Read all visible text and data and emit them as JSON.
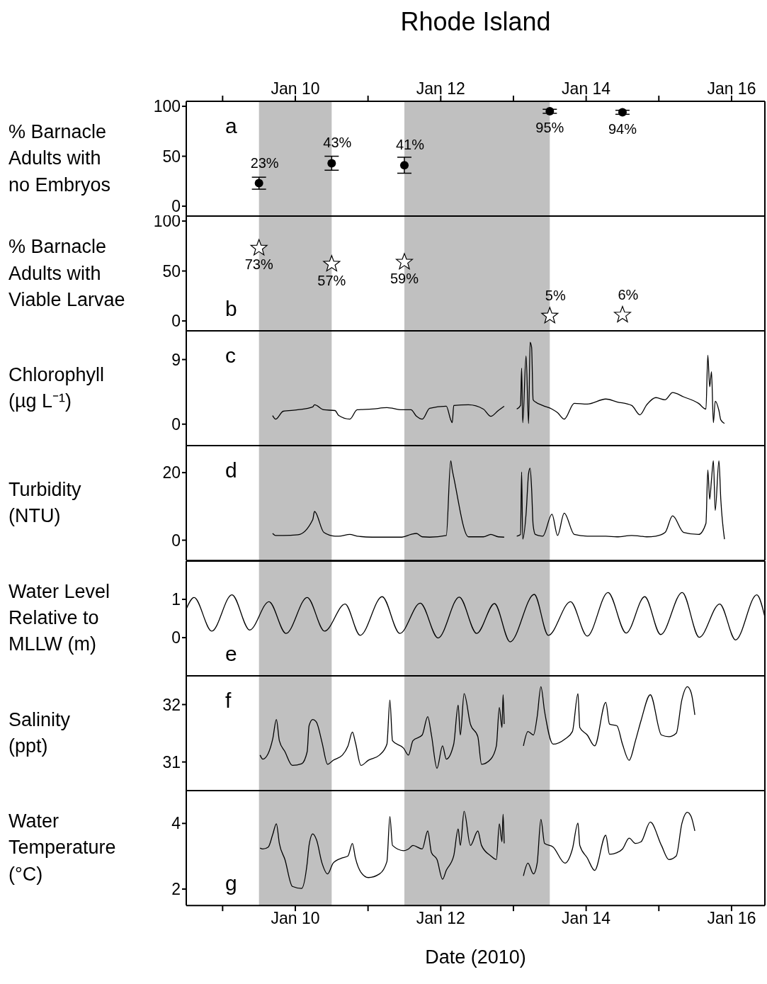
{
  "chart_data": [
    {
      "type": "scatter",
      "title": "Rhode Island",
      "ylabel": "% Barnacle\nAdults with\nno Embryos",
      "annotations": [
        "a"
      ],
      "marker": "circle",
      "tick_labels": "y",
      "x": [
        "2010-01-09T12:00",
        "2010-01-10T12:00",
        "2010-01-11T12:00",
        "2010-01-13T12:00",
        "2010-01-14T12:00"
      ],
      "series": [
        {
          "color": "#000000",
          "values": [
            23,
            43,
            41,
            95,
            94
          ],
          "errors": [
            6,
            7,
            8,
            2,
            2
          ],
          "value_labels": [
            "23%",
            "43%",
            "41%",
            "95%",
            "94%"
          ]
        }
      ],
      "xlim": [
        "2010-01-08T12:00",
        "2010-01-16T11:00"
      ],
      "xticks": [
        {
          "value": "2010-01-09",
          "label": null
        },
        {
          "value": "2010-01-10",
          "label": null
        },
        {
          "value": "2010-01-11",
          "label": null
        },
        {
          "value": "2010-01-12",
          "label": null
        },
        {
          "value": "2010-01-13",
          "label": null
        },
        {
          "value": "2010-01-14",
          "label": null
        },
        {
          "value": "2010-01-15",
          "label": null
        },
        {
          "value": "2010-01-16",
          "label": null
        }
      ],
      "x2lim": [
        "2010-01-08T12:00",
        "2010-01-16T11:00"
      ],
      "x2ticks": [
        {
          "value": "2010-01-09",
          "label": null
        },
        {
          "value": "2010-01-10",
          "label": "Jan 10"
        },
        {
          "value": "2010-01-11",
          "label": null
        },
        {
          "value": "2010-01-12",
          "label": "Jan 12"
        },
        {
          "value": "2010-01-13",
          "label": null
        },
        {
          "value": "2010-01-14",
          "label": "Jan 14"
        },
        {
          "value": "2010-01-15",
          "label": null
        },
        {
          "value": "2010-01-16",
          "label": "Jan 16"
        }
      ],
      "ylim": [
        -10,
        105
      ],
      "yticks": [
        0,
        50,
        100
      ],
      "bands": [
        {
          "axis": "x",
          "from": "2010-01-09T12:00",
          "to": "2010-01-10T12:00",
          "color": "#c0c0c0"
        },
        {
          "axis": "x",
          "from": "2010-01-11T12:00",
          "to": "2010-01-13T12:00",
          "color": "#c0c0c0"
        }
      ]
    },
    {
      "type": "scatter",
      "ylabel": "% Barnacle\nAdults with\nViable Larvae",
      "annotations": [
        "b"
      ],
      "marker": "star",
      "tick_labels": "y",
      "x": [
        "2010-01-09T12:00",
        "2010-01-10T12:00",
        "2010-01-11T12:00",
        "2010-01-13T12:00",
        "2010-01-14T12:00"
      ],
      "series": [
        {
          "color": "#000000",
          "values": [
            73,
            57,
            59,
            5,
            6
          ],
          "value_labels": [
            "73%",
            "57%",
            "59%",
            "5%",
            "6%"
          ]
        }
      ],
      "xlim": [
        "2010-01-08T12:00",
        "2010-01-16T11:00"
      ],
      "xticks": [
        {
          "value": "2010-01-09",
          "label": null
        },
        {
          "value": "2010-01-10",
          "label": null
        },
        {
          "value": "2010-01-11",
          "label": null
        },
        {
          "value": "2010-01-12",
          "label": null
        },
        {
          "value": "2010-01-13",
          "label": null
        },
        {
          "value": "2010-01-14",
          "label": null
        },
        {
          "value": "2010-01-15",
          "label": null
        },
        {
          "value": "2010-01-16",
          "label": null
        }
      ],
      "ylim": [
        -10,
        105
      ],
      "yticks": [
        0,
        50,
        100
      ],
      "bands": [
        {
          "axis": "x",
          "from": "2010-01-09T12:00",
          "to": "2010-01-10T12:00",
          "color": "#c0c0c0"
        },
        {
          "axis": "x",
          "from": "2010-01-11T12:00",
          "to": "2010-01-13T12:00",
          "color": "#c0c0c0"
        }
      ]
    },
    {
      "type": "line",
      "ylabel": "Chlorophyll\n(µg L⁻¹)",
      "annotations": [
        "c"
      ],
      "tick_labels": "y",
      "x": [
        "2010-01-09T16:30",
        "2010-01-09T17:30",
        "2010-01-09T20:00",
        "2010-01-10T00:50",
        "2010-01-10T05:45",
        "2010-01-10T06:20",
        "2010-01-10T09:25",
        "2010-01-10T13:05",
        "2010-01-10T14:20",
        "2010-01-10T18:00",
        "2010-01-10T20:25",
        "2010-01-11T01:20",
        "2010-01-11T06:15",
        "2010-01-11T11:10",
        "2010-01-11T14:10",
        "2010-01-11T16:00",
        "2010-01-11T17:55",
        "2010-01-11T20:20",
        "2010-01-12T01:50",
        "2010-01-12T03:18",
        "2010-01-12T03:48",
        "2010-01-12T04:18",
        "2010-01-12T09:10",
        "2010-01-12T14:05",
        "2010-01-12T16:32",
        "2010-01-12T19:00",
        "2010-01-12T20:57",
        "2010-01-12T23:00",
        "2010-01-13T01:06",
        "2010-01-13T02:20",
        "2010-01-13T02:42",
        "2010-01-13T03:04",
        "2010-01-13T04:10",
        "2010-01-13T05:00",
        "2010-01-13T05:30",
        "2010-01-13T06:00",
        "2010-01-13T06:30",
        "2010-01-13T07:14",
        "2010-01-13T09:40",
        "2010-01-13T12:44",
        "2010-01-13T14:34",
        "2010-01-13T16:46",
        "2010-01-13T20:05",
        "2010-01-14T00:22",
        "2010-01-14T06:30",
        "2010-01-14T10:10",
        "2010-01-14T15:04",
        "2010-01-14T17:45",
        "2010-01-14T20:00",
        "2010-01-14T23:00",
        "2010-01-15T02:05",
        "2010-01-15T04:32",
        "2010-01-15T08:12",
        "2010-01-15T13:06",
        "2010-01-15T15:33",
        "2010-01-15T16:10",
        "2010-01-15T16:47",
        "2010-01-15T17:23",
        "2010-01-15T18:00",
        "2010-01-15T18:37",
        "2010-01-15T19:50",
        "2010-01-15T20:27",
        "2010-01-15T21:40"
      ],
      "series": [
        {
          "color": "#000000",
          "values": [
            1.2,
            0.7,
            1.8,
            2.0,
            2.4,
            2.7,
            2.0,
            1.9,
            1.2,
            0.7,
            2.0,
            2.1,
            2.3,
            2.0,
            2.0,
            1.1,
            0.7,
            2.2,
            2.5,
            0.6,
            0.2,
            2.6,
            2.7,
            2.1,
            1.1,
            1.9,
            2.5,
            null,
            2.1,
            2.6,
            7.8,
            0.2,
            9.5,
            0.1,
            11.4,
            10.7,
            3.4,
            3.1,
            2.6,
            2.1,
            1.6,
            0.7,
            2.9,
            2.8,
            3.5,
            3.1,
            2.6,
            1.3,
            2.7,
            3.7,
            3.4,
            4.4,
            3.8,
            2.9,
            2.1,
            9.6,
            5.2,
            7.3,
            0.2,
            3.2,
            1.9,
            0.6,
            0.1
          ]
        }
      ],
      "xlim": [
        "2010-01-08T12:00",
        "2010-01-16T11:00"
      ],
      "xticks": [
        {
          "value": "2010-01-09",
          "label": null
        },
        {
          "value": "2010-01-10",
          "label": null
        },
        {
          "value": "2010-01-11",
          "label": null
        },
        {
          "value": "2010-01-12",
          "label": null
        },
        {
          "value": "2010-01-13",
          "label": null
        },
        {
          "value": "2010-01-14",
          "label": null
        },
        {
          "value": "2010-01-15",
          "label": null
        },
        {
          "value": "2010-01-16",
          "label": null
        }
      ],
      "ylim": [
        -3,
        13
      ],
      "yticks": [
        0,
        9
      ],
      "bands": [
        {
          "axis": "x",
          "from": "2010-01-09T12:00",
          "to": "2010-01-10T12:00",
          "color": "#c0c0c0"
        },
        {
          "axis": "x",
          "from": "2010-01-11T12:00",
          "to": "2010-01-13T12:00",
          "color": "#c0c0c0"
        }
      ]
    },
    {
      "type": "line",
      "ylabel": "Turbidity\n(NTU)",
      "annotations": [
        "d"
      ],
      "tick_labels": "y",
      "x": [
        "2010-01-09T16:30",
        "2010-01-09T17:30",
        "2010-01-09T20:00",
        "2010-01-10T00:50",
        "2010-01-10T05:45",
        "2010-01-10T06:20",
        "2010-01-10T09:25",
        "2010-01-10T13:05",
        "2010-01-10T14:20",
        "2010-01-10T18:00",
        "2010-01-10T20:25",
        "2010-01-11T01:20",
        "2010-01-11T06:15",
        "2010-01-11T11:10",
        "2010-01-11T14:10",
        "2010-01-11T16:00",
        "2010-01-11T17:55",
        "2010-01-11T20:20",
        "2010-01-12T01:50",
        "2010-01-12T03:18",
        "2010-01-12T03:48",
        "2010-01-12T04:18",
        "2010-01-12T09:10",
        "2010-01-12T14:05",
        "2010-01-12T16:32",
        "2010-01-12T19:00",
        "2010-01-12T20:57",
        "2010-01-12T23:00",
        "2010-01-13T01:06",
        "2010-01-13T02:20",
        "2010-01-13T02:42",
        "2010-01-13T03:04",
        "2010-01-13T04:10",
        "2010-01-13T05:00",
        "2010-01-13T05:30",
        "2010-01-13T06:00",
        "2010-01-13T06:30",
        "2010-01-13T07:14",
        "2010-01-13T09:40",
        "2010-01-13T12:44",
        "2010-01-13T14:34",
        "2010-01-13T16:46",
        "2010-01-13T20:05",
        "2010-01-14T00:22",
        "2010-01-14T06:30",
        "2010-01-14T10:10",
        "2010-01-14T15:04",
        "2010-01-14T17:45",
        "2010-01-14T20:00",
        "2010-01-14T23:00",
        "2010-01-15T02:05",
        "2010-01-15T04:32",
        "2010-01-15T08:12",
        "2010-01-15T13:06",
        "2010-01-15T15:33",
        "2010-01-15T16:10",
        "2010-01-15T16:47",
        "2010-01-15T17:23",
        "2010-01-15T18:00",
        "2010-01-15T18:37",
        "2010-01-15T19:50",
        "2010-01-15T20:27",
        "2010-01-15T21:40"
      ],
      "series": [
        {
          "color": "#000000",
          "values": [
            2.0,
            1.4,
            1.4,
            1.6,
            6.1,
            8.5,
            2.3,
            1.2,
            1.2,
            1.7,
            1.2,
            0.9,
            0.9,
            0.9,
            1.7,
            2.0,
            1.0,
            0.9,
            1.4,
            23.5,
            20.8,
            18.6,
            1.0,
            1.0,
            1.7,
            1.0,
            0.9,
            null,
            1.2,
            1.7,
            20.2,
            0.3,
            7.7,
            19.7,
            21.3,
            15.3,
            4.5,
            1.7,
            1.2,
            7.7,
            1.4,
            8.0,
            1.7,
            1.2,
            1.2,
            1.0,
            1.4,
            1.2,
            1.0,
            1.2,
            2.3,
            7.2,
            2.3,
            1.7,
            5.0,
            20.8,
            12.1,
            18.0,
            23.5,
            8.8,
            23.5,
            12.1,
            0.3
          ]
        }
      ],
      "xlim": [
        "2010-01-08T12:00",
        "2010-01-16T11:00"
      ],
      "xticks": [
        {
          "value": "2010-01-09",
          "label": null
        },
        {
          "value": "2010-01-10",
          "label": null
        },
        {
          "value": "2010-01-11",
          "label": null
        },
        {
          "value": "2010-01-12",
          "label": null
        },
        {
          "value": "2010-01-13",
          "label": null
        },
        {
          "value": "2010-01-14",
          "label": null
        },
        {
          "value": "2010-01-15",
          "label": null
        },
        {
          "value": "2010-01-16",
          "label": null
        }
      ],
      "ylim": [
        -6,
        28
      ],
      "yticks": [
        0,
        20
      ],
      "bands": [
        {
          "axis": "x",
          "from": "2010-01-09T12:00",
          "to": "2010-01-10T12:00",
          "color": "#c0c0c0"
        },
        {
          "axis": "x",
          "from": "2010-01-11T12:00",
          "to": "2010-01-13T12:00",
          "color": "#c0c0c0"
        }
      ]
    },
    {
      "type": "line",
      "ylabel": "Water Level\nRelative to\nMLLW (m)",
      "annotations": [
        "e"
      ],
      "tick_labels": "y",
      "x": [
        "2010-01-08T12:00",
        "2010-01-08T14:35",
        "2010-01-08T20:25",
        "2010-01-09T03:05",
        "2010-01-09T08:56",
        "2010-01-09T15:18",
        "2010-01-09T20:56",
        "2010-01-10T03:55",
        "2010-01-10T09:40",
        "2010-01-10T16:25",
        "2010-01-10T21:25",
        "2010-01-11T04:40",
        "2010-01-11T10:30",
        "2010-01-11T17:15",
        "2010-01-11T23:08",
        "2010-01-12T06:07",
        "2010-01-12T11:53",
        "2010-01-12T17:45",
        "2010-01-12T22:54",
        "2010-01-13T06:52",
        "2010-01-13T11:31",
        "2010-01-13T18:51",
        "2010-01-14T00:22",
        "2010-01-14T07:13",
        "2010-01-14T13:13",
        "2010-01-14T19:21",
        "2010-01-15T00:36",
        "2010-01-15T07:43",
        "2010-01-15T13:21",
        "2010-01-15T20:05",
        "2010-01-16T01:21",
        "2010-01-16T08:20",
        "2010-01-16T11:00"
      ],
      "series": [
        {
          "color": "#000000",
          "values": [
            0.75,
            1.05,
            0.17,
            1.12,
            0.2,
            0.94,
            0.11,
            1.05,
            0.17,
            0.88,
            0.06,
            1.07,
            0.11,
            0.9,
            -0.01,
            1.06,
            0.11,
            0.89,
            -0.11,
            1.13,
            0.06,
            0.94,
            0.04,
            1.18,
            0.12,
            1.07,
            0.08,
            1.18,
            0.01,
            0.88,
            -0.06,
            1.12,
            0.54
          ]
        }
      ],
      "xlim": [
        "2010-01-08T12:00",
        "2010-01-16T11:00"
      ],
      "xticks": [
        {
          "value": "2010-01-09",
          "label": null
        },
        {
          "value": "2010-01-10",
          "label": null
        },
        {
          "value": "2010-01-11",
          "label": null
        },
        {
          "value": "2010-01-12",
          "label": null
        },
        {
          "value": "2010-01-13",
          "label": null
        },
        {
          "value": "2010-01-14",
          "label": null
        },
        {
          "value": "2010-01-15",
          "label": null
        },
        {
          "value": "2010-01-16",
          "label": null
        }
      ],
      "ylim": [
        -1,
        2
      ],
      "yticks": [
        0,
        1
      ],
      "bands": [
        {
          "axis": "x",
          "from": "2010-01-09T12:00",
          "to": "2010-01-10T12:00",
          "color": "#c0c0c0"
        },
        {
          "axis": "x",
          "from": "2010-01-11T12:00",
          "to": "2010-01-13T12:00",
          "color": "#c0c0c0"
        }
      ]
    },
    {
      "type": "line",
      "ylabel": "Salinity\n(ppt)",
      "annotations": [
        "f"
      ],
      "tick_labels": "y",
      "x": [
        "2010-01-09T12:22",
        "2010-01-09T13:15",
        "2010-01-09T15:04",
        "2010-01-09T16:32",
        "2010-01-09T17:45",
        "2010-01-09T18:44",
        "2010-01-09T20:34",
        "2010-01-09T23:01",
        "2010-01-10T02:05",
        "2010-01-10T03:55",
        "2010-01-10T04:32",
        "2010-01-10T05:45",
        "2010-01-10T07:00",
        "2010-01-10T08:49",
        "2010-01-10T10:39",
        "2010-01-10T12:29",
        "2010-01-10T15:33",
        "2010-01-10T17:23",
        "2010-01-10T18:51",
        "2010-01-10T19:50",
        "2010-01-10T21:40",
        "2010-01-11T00:07",
        "2010-01-11T03:47",
        "2010-01-11T06:14",
        "2010-01-11T07:13",
        "2010-01-11T08:05",
        "2010-01-11T11:45",
        "2010-01-11T13:21",
        "2010-01-11T14:49",
        "2010-01-11T17:53",
        "2010-01-11T19:43",
        "2010-01-11T20:56",
        "2010-01-11T22:46",
        "2010-01-12T00:36",
        "2010-01-12T01:50",
        "2010-01-12T04:17",
        "2010-01-12T05:45",
        "2010-01-12T06:29",
        "2010-01-12T07:43",
        "2010-01-12T09:48",
        "2010-01-12T12:15",
        "2010-01-12T13:28",
        "2010-01-12T16:32",
        "2010-01-12T18:22",
        "2010-01-12T19:21",
        "2010-01-12T20:13",
        "2010-01-12T20:35",
        "2010-01-12T20:57",
        "2010-01-12T23:00",
        "2010-01-13T03:18",
        "2010-01-13T04:47",
        "2010-01-13T06:37",
        "2010-01-13T07:50",
        "2010-01-13T09:04",
        "2010-01-13T10:17",
        "2010-01-13T13:06",
        "2010-01-13T17:01",
        "2010-01-13T19:28",
        "2010-01-13T21:18",
        "2010-01-13T21:55",
        "2010-01-14T00:22",
        "2010-01-14T02:49",
        "2010-01-14T06:29",
        "2010-01-14T07:43",
        "2010-01-14T10:10",
        "2010-01-14T12:00",
        "2010-01-14T14:12",
        "2010-01-14T16:17",
        "2010-01-14T18:07",
        "2010-01-14T21:11",
        "2010-01-15T00:51",
        "2010-01-15T03:18",
        "2010-01-15T05:45",
        "2010-01-15T07:35",
        "2010-01-15T09:25",
        "2010-01-15T10:39",
        "2010-01-15T11:53"
      ],
      "series": [
        {
          "color": "#000000",
          "values": [
            31.12,
            31.05,
            31.15,
            31.4,
            31.74,
            31.37,
            31.18,
            30.94,
            30.97,
            31.18,
            31.63,
            31.74,
            31.69,
            31.34,
            30.96,
            31.03,
            31.12,
            31.28,
            31.52,
            31.34,
            30.94,
            31.03,
            31.12,
            31.31,
            32.08,
            31.37,
            31.24,
            31.12,
            31.37,
            31.47,
            31.79,
            31.47,
            30.89,
            31.28,
            31.05,
            31.31,
            31.99,
            31.47,
            32.19,
            31.66,
            31.44,
            30.96,
            31.05,
            31.28,
            31.95,
            31.6,
            32.17,
            31.66,
            null,
            31.28,
            31.53,
            31.47,
            31.79,
            32.31,
            31.88,
            31.31,
            31.4,
            31.53,
            32.19,
            31.6,
            31.47,
            31.28,
            32.04,
            31.66,
            31.63,
            31.31,
            31.03,
            31.37,
            31.72,
            32.17,
            31.47,
            31.44,
            31.5,
            32.08,
            32.31,
            32.21,
            31.82
          ]
        }
      ],
      "xlim": [
        "2010-01-08T12:00",
        "2010-01-16T11:00"
      ],
      "xticks": [
        {
          "value": "2010-01-09",
          "label": null
        },
        {
          "value": "2010-01-10",
          "label": null
        },
        {
          "value": "2010-01-11",
          "label": null
        },
        {
          "value": "2010-01-12",
          "label": null
        },
        {
          "value": "2010-01-13",
          "label": null
        },
        {
          "value": "2010-01-14",
          "label": null
        },
        {
          "value": "2010-01-15",
          "label": null
        },
        {
          "value": "2010-01-16",
          "label": null
        }
      ],
      "ylim": [
        30.5,
        32.5
      ],
      "yticks": [
        31,
        32
      ],
      "bands": [
        {
          "axis": "x",
          "from": "2010-01-09T12:00",
          "to": "2010-01-10T12:00",
          "color": "#c0c0c0"
        },
        {
          "axis": "x",
          "from": "2010-01-11T12:00",
          "to": "2010-01-13T12:00",
          "color": "#c0c0c0"
        }
      ]
    },
    {
      "type": "line",
      "ylabel": "Water\nTemperature\n(°C)",
      "xlabel": "Date (2010)",
      "annotations": [
        "g"
      ],
      "x": [
        "2010-01-09T12:22",
        "2010-01-09T13:15",
        "2010-01-09T15:04",
        "2010-01-09T16:32",
        "2010-01-09T17:45",
        "2010-01-09T18:44",
        "2010-01-09T20:34",
        "2010-01-09T23:01",
        "2010-01-10T02:05",
        "2010-01-10T03:55",
        "2010-01-10T04:32",
        "2010-01-10T05:45",
        "2010-01-10T07:00",
        "2010-01-10T08:49",
        "2010-01-10T10:39",
        "2010-01-10T12:29",
        "2010-01-10T15:33",
        "2010-01-10T17:23",
        "2010-01-10T18:51",
        "2010-01-10T19:50",
        "2010-01-10T21:40",
        "2010-01-11T00:07",
        "2010-01-11T03:47",
        "2010-01-11T06:14",
        "2010-01-11T07:13",
        "2010-01-11T08:05",
        "2010-01-11T11:45",
        "2010-01-11T13:21",
        "2010-01-11T14:49",
        "2010-01-11T17:53",
        "2010-01-11T19:43",
        "2010-01-11T20:56",
        "2010-01-11T22:46",
        "2010-01-12T00:36",
        "2010-01-12T01:50",
        "2010-01-12T04:17",
        "2010-01-12T05:45",
        "2010-01-12T06:29",
        "2010-01-12T07:43",
        "2010-01-12T09:48",
        "2010-01-12T12:15",
        "2010-01-12T13:28",
        "2010-01-12T16:32",
        "2010-01-12T18:22",
        "2010-01-12T19:21",
        "2010-01-12T20:13",
        "2010-01-12T20:35",
        "2010-01-12T20:57",
        "2010-01-12T23:00",
        "2010-01-13T03:18",
        "2010-01-13T04:47",
        "2010-01-13T06:37",
        "2010-01-13T07:50",
        "2010-01-13T09:04",
        "2010-01-13T10:17",
        "2010-01-13T13:06",
        "2010-01-13T17:01",
        "2010-01-13T19:28",
        "2010-01-13T21:18",
        "2010-01-13T21:55",
        "2010-01-14T00:22",
        "2010-01-14T02:49",
        "2010-01-14T06:29",
        "2010-01-14T07:43",
        "2010-01-14T10:10",
        "2010-01-14T12:00",
        "2010-01-14T14:12",
        "2010-01-14T16:17",
        "2010-01-14T18:07",
        "2010-01-14T21:11",
        "2010-01-15T00:51",
        "2010-01-15T03:18",
        "2010-01-15T05:45",
        "2010-01-15T07:35",
        "2010-01-15T09:25",
        "2010-01-15T10:39",
        "2010-01-15T11:53"
      ],
      "series": [
        {
          "color": "#000000",
          "values": [
            3.25,
            3.22,
            3.28,
            3.66,
            3.99,
            3.39,
            2.9,
            2.08,
            2.02,
            2.79,
            3.33,
            3.68,
            3.5,
            2.79,
            2.46,
            2.79,
            2.95,
            3.01,
            3.39,
            2.95,
            2.51,
            2.35,
            2.46,
            2.84,
            4.21,
            3.33,
            3.17,
            3.22,
            3.33,
            3.22,
            3.77,
            3.11,
            2.9,
            2.3,
            2.57,
            3.01,
            3.83,
            3.33,
            4.37,
            3.33,
            3.77,
            3.33,
            3.01,
            2.9,
            3.99,
            3.44,
            4.28,
            3.39,
            null,
            2.4,
            2.79,
            2.46,
            2.79,
            4.12,
            3.39,
            3.28,
            2.79,
            3.22,
            4.01,
            3.33,
            2.95,
            2.57,
            3.64,
            3.06,
            3.11,
            3.22,
            3.55,
            3.39,
            3.44,
            4.04,
            3.33,
            2.9,
            3.01,
            3.99,
            4.34,
            4.21,
            3.77
          ]
        }
      ],
      "xlim": [
        "2010-01-08T12:00",
        "2010-01-16T11:00"
      ],
      "xticks": [
        {
          "value": "2010-01-09",
          "label": null
        },
        {
          "value": "2010-01-10",
          "label": "Jan 10"
        },
        {
          "value": "2010-01-11",
          "label": null
        },
        {
          "value": "2010-01-12",
          "label": "Jan 12"
        },
        {
          "value": "2010-01-13",
          "label": null
        },
        {
          "value": "2010-01-14",
          "label": "Jan 14"
        },
        {
          "value": "2010-01-15",
          "label": null
        },
        {
          "value": "2010-01-16",
          "label": "Jan 16"
        }
      ],
      "ylim": [
        1.5,
        5
      ],
      "yticks": [
        2,
        4
      ],
      "bands": [
        {
          "axis": "x",
          "from": "2010-01-09T12:00",
          "to": "2010-01-10T12:00",
          "color": "#c0c0c0"
        },
        {
          "axis": "x",
          "from": "2010-01-11T12:00",
          "to": "2010-01-13T12:00",
          "color": "#c0c0c0"
        }
      ]
    }
  ]
}
